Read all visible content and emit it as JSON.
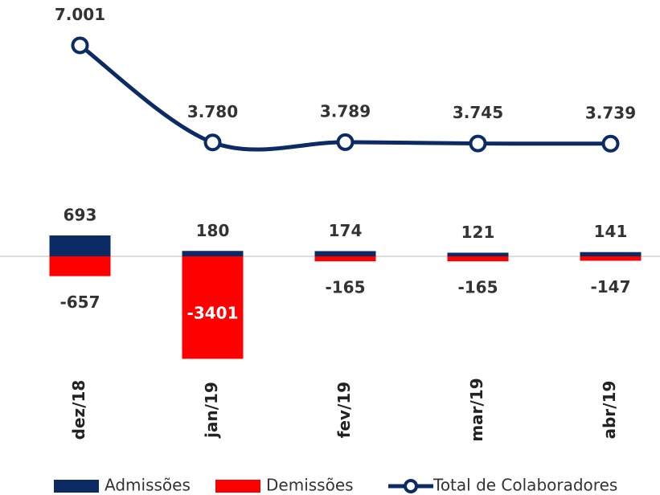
{
  "chart_data": {
    "type": "bar-line",
    "categories": [
      "dez/18",
      "jan/19",
      "fev/19",
      "mar/19",
      "abr/19"
    ],
    "ylim": [
      -4000,
      8000
    ],
    "legend": "bottom",
    "series": [
      {
        "name": "Admissões",
        "type": "bar",
        "color": "#0c2a63",
        "values": [
          693,
          180,
          174,
          121,
          141
        ]
      },
      {
        "name": "Demissões",
        "type": "bar",
        "color": "#ff0000",
        "values": [
          -657,
          -3401,
          -165,
          -165,
          -147
        ]
      },
      {
        "name": "Total de Colaboradores",
        "type": "line",
        "color": "#0c2a63",
        "values": [
          7001,
          3780,
          3789,
          3745,
          3739
        ],
        "value_labels": [
          "7.001",
          "3.780",
          "3.789",
          "3.745",
          "3.739"
        ]
      }
    ]
  }
}
